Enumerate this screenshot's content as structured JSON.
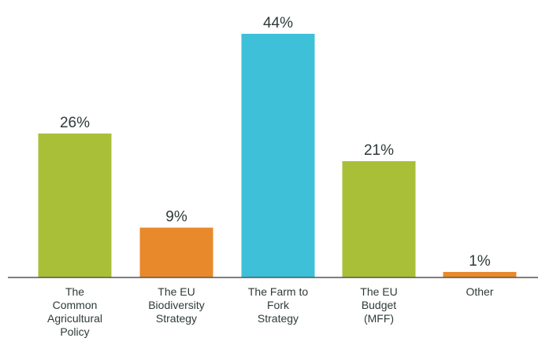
{
  "chart_data": {
    "type": "bar",
    "title": "",
    "xlabel": "",
    "ylabel": "",
    "ylim": [
      0,
      44
    ],
    "grid": false,
    "legend": "none",
    "categories": [
      [
        "The",
        "Common",
        "Agricultural",
        "Policy"
      ],
      [
        "The EU",
        "Biodiversity",
        "Strategy"
      ],
      [
        "The Farm to",
        "Fork",
        "Strategy"
      ],
      [
        "The EU",
        "Budget",
        "(MFF)"
      ],
      [
        "Other"
      ]
    ],
    "values": [
      26,
      9,
      44,
      21,
      1
    ],
    "data_labels": [
      "26%",
      "9%",
      "44%",
      "21%",
      "1%"
    ],
    "colors": [
      "#a9bf38",
      "#e8892b",
      "#3dc0d8",
      "#a9bf38",
      "#e8892b"
    ],
    "axis_color": "#555555"
  }
}
